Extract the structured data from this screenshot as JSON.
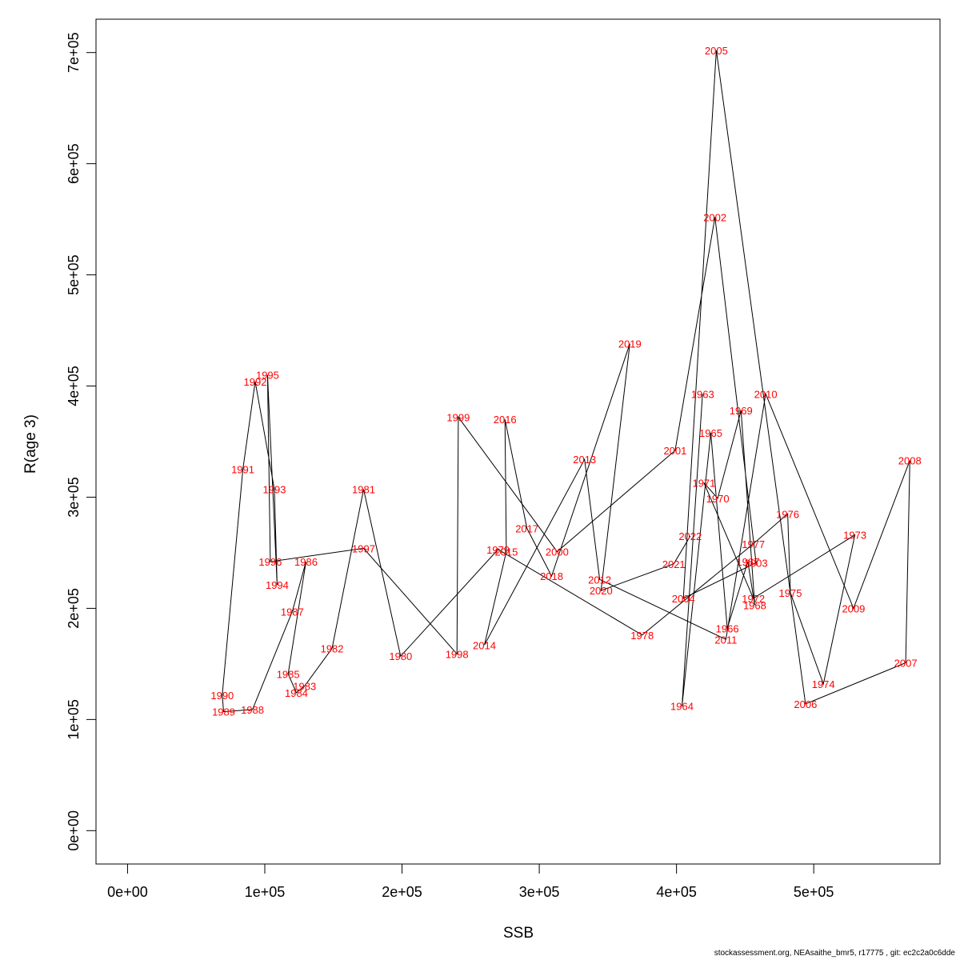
{
  "chart_data": {
    "type": "line",
    "xlabel": "SSB",
    "ylabel": "R(age 3)",
    "xlim": [
      -23000,
      592000
    ],
    "ylim": [
      -30000,
      730000
    ],
    "x_ticks": [
      0,
      100000,
      200000,
      300000,
      400000,
      500000
    ],
    "x_tick_labels": [
      "0e+00",
      "1e+05",
      "2e+05",
      "3e+05",
      "4e+05",
      "5e+05"
    ],
    "y_ticks": [
      0,
      100000,
      200000,
      300000,
      400000,
      500000,
      600000,
      700000
    ],
    "y_tick_labels": [
      "0e+00",
      "1e+05",
      "2e+05",
      "3e+05",
      "4e+05",
      "5e+05",
      "6e+05",
      "7e+05"
    ],
    "grid": false,
    "line_color": "#000000",
    "label_color": "#ff0000",
    "points": [
      {
        "year": "1963",
        "x": 419000,
        "y": 393000
      },
      {
        "year": "1964",
        "x": 404000,
        "y": 112000
      },
      {
        "year": "1965",
        "x": 425000,
        "y": 358000
      },
      {
        "year": "1966",
        "x": 437000,
        "y": 182000
      },
      {
        "year": "1967",
        "x": 452000,
        "y": 242000
      },
      {
        "year": "1968",
        "x": 457000,
        "y": 203000
      },
      {
        "year": "1969",
        "x": 447000,
        "y": 378000
      },
      {
        "year": "1970",
        "x": 430000,
        "y": 299000
      },
      {
        "year": "1971",
        "x": 420000,
        "y": 313000
      },
      {
        "year": "1972",
        "x": 456000,
        "y": 209000
      },
      {
        "year": "1973",
        "x": 530000,
        "y": 266000
      },
      {
        "year": "1974",
        "x": 507000,
        "y": 132000
      },
      {
        "year": "1975",
        "x": 483000,
        "y": 214000
      },
      {
        "year": "1976",
        "x": 481000,
        "y": 285000
      },
      {
        "year": "1977",
        "x": 456000,
        "y": 258000
      },
      {
        "year": "1978",
        "x": 375000,
        "y": 176000
      },
      {
        "year": "1979",
        "x": 270000,
        "y": 253000
      },
      {
        "year": "1980",
        "x": 199000,
        "y": 157000
      },
      {
        "year": "1981",
        "x": 172000,
        "y": 307000
      },
      {
        "year": "1982",
        "x": 149000,
        "y": 164000
      },
      {
        "year": "1983",
        "x": 129000,
        "y": 130000
      },
      {
        "year": "1984",
        "x": 123000,
        "y": 124000
      },
      {
        "year": "1985",
        "x": 117000,
        "y": 141000
      },
      {
        "year": "1986",
        "x": 130000,
        "y": 242000
      },
      {
        "year": "1987",
        "x": 120000,
        "y": 197000
      },
      {
        "year": "1988",
        "x": 91000,
        "y": 109000
      },
      {
        "year": "1989",
        "x": 70000,
        "y": 107000
      },
      {
        "year": "1990",
        "x": 69000,
        "y": 122000
      },
      {
        "year": "1991",
        "x": 84000,
        "y": 325000
      },
      {
        "year": "1992",
        "x": 93000,
        "y": 404000
      },
      {
        "year": "1993",
        "x": 107000,
        "y": 307000
      },
      {
        "year": "1994",
        "x": 109000,
        "y": 221000
      },
      {
        "year": "1995",
        "x": 102000,
        "y": 410000
      },
      {
        "year": "1996",
        "x": 104000,
        "y": 242000
      },
      {
        "year": "1997",
        "x": 172000,
        "y": 254000
      },
      {
        "year": "1998",
        "x": 240000,
        "y": 159000
      },
      {
        "year": "1999",
        "x": 241000,
        "y": 372000
      },
      {
        "year": "2000",
        "x": 313000,
        "y": 251000
      },
      {
        "year": "2001",
        "x": 399000,
        "y": 342000
      },
      {
        "year": "2002",
        "x": 428000,
        "y": 552000
      },
      {
        "year": "2003",
        "x": 458000,
        "y": 241000
      },
      {
        "year": "2004",
        "x": 405000,
        "y": 209000
      },
      {
        "year": "2005",
        "x": 429000,
        "y": 702000
      },
      {
        "year": "2006",
        "x": 494000,
        "y": 114000
      },
      {
        "year": "2007",
        "x": 567000,
        "y": 151000
      },
      {
        "year": "2008",
        "x": 570000,
        "y": 333000
      },
      {
        "year": "2009",
        "x": 529000,
        "y": 200000
      },
      {
        "year": "2010",
        "x": 465000,
        "y": 393000
      },
      {
        "year": "2011",
        "x": 436000,
        "y": 172000
      },
      {
        "year": "2012",
        "x": 344000,
        "y": 226000
      },
      {
        "year": "2013",
        "x": 333000,
        "y": 334000
      },
      {
        "year": "2014",
        "x": 260000,
        "y": 167000
      },
      {
        "year": "2015",
        "x": 276000,
        "y": 251000
      },
      {
        "year": "2016",
        "x": 275000,
        "y": 370000
      },
      {
        "year": "2017",
        "x": 291000,
        "y": 272000
      },
      {
        "year": "2018",
        "x": 309000,
        "y": 229000
      },
      {
        "year": "2019",
        "x": 366000,
        "y": 438000
      },
      {
        "year": "2020",
        "x": 345000,
        "y": 216000
      },
      {
        "year": "2021",
        "x": 398000,
        "y": 240000
      },
      {
        "year": "2022",
        "x": 410000,
        "y": 265000
      }
    ]
  },
  "footer": "stockassessment.org, NEAsaithe_bmr5, r17775 , git: ec2c2a0c6dde"
}
